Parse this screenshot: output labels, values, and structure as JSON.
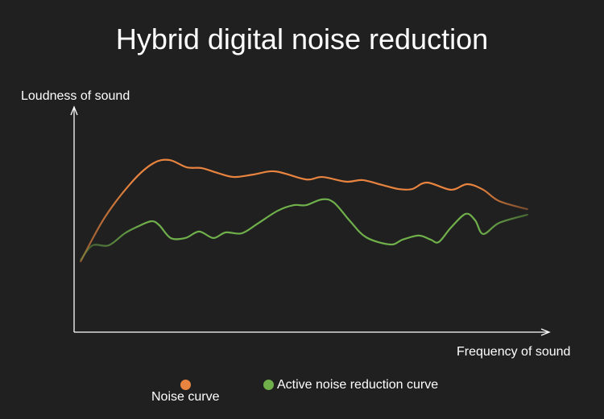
{
  "chart_data": {
    "type": "line",
    "title": "Hybrid digital noise reduction",
    "xlabel": "Frequency of sound",
    "ylabel": "Loudness of sound",
    "xlim": [
      0,
      100
    ],
    "ylim": [
      0,
      100
    ],
    "grid": false,
    "legend_placement": "bottom",
    "series": [
      {
        "name": "Noise curve",
        "color": "#e8843f",
        "points": [
          [
            1.4,
            31.7
          ],
          [
            6.5,
            51.4
          ],
          [
            12.4,
            67.6
          ],
          [
            16.7,
            75.5
          ],
          [
            20.1,
            77.0
          ],
          [
            23.8,
            73.7
          ],
          [
            26.9,
            73.4
          ],
          [
            30.3,
            71.2
          ],
          [
            33.7,
            69.4
          ],
          [
            37.9,
            70.5
          ],
          [
            42.5,
            71.9
          ],
          [
            49.0,
            68.3
          ],
          [
            52.4,
            69.4
          ],
          [
            57.5,
            67.3
          ],
          [
            60.9,
            68.0
          ],
          [
            65.1,
            65.8
          ],
          [
            68.5,
            64.0
          ],
          [
            71.4,
            64.0
          ],
          [
            74.5,
            66.9
          ],
          [
            79.6,
            63.7
          ],
          [
            83.0,
            66.2
          ],
          [
            86.4,
            63.7
          ],
          [
            89.8,
            58.6
          ],
          [
            95.7,
            55.0
          ]
        ]
      },
      {
        "name": "Active noise reduction curve",
        "color": "#6fb04a",
        "points": [
          [
            1.4,
            32.4
          ],
          [
            3.9,
            38.8
          ],
          [
            7.3,
            38.8
          ],
          [
            10.7,
            44.2
          ],
          [
            13.3,
            47.1
          ],
          [
            16.3,
            49.6
          ],
          [
            18.0,
            47.8
          ],
          [
            20.4,
            42.1
          ],
          [
            23.5,
            42.1
          ],
          [
            26.4,
            45.0
          ],
          [
            29.4,
            42.1
          ],
          [
            32.0,
            44.6
          ],
          [
            35.4,
            44.2
          ],
          [
            38.8,
            48.6
          ],
          [
            43.0,
            54.3
          ],
          [
            46.4,
            56.8
          ],
          [
            49.0,
            56.8
          ],
          [
            52.4,
            59.4
          ],
          [
            54.9,
            57.9
          ],
          [
            58.3,
            49.6
          ],
          [
            61.7,
            42.4
          ],
          [
            66.8,
            39.2
          ],
          [
            69.4,
            41.4
          ],
          [
            72.8,
            43.2
          ],
          [
            75.3,
            41.4
          ],
          [
            77.0,
            40.3
          ],
          [
            79.6,
            46.8
          ],
          [
            82.7,
            52.9
          ],
          [
            84.7,
            50.0
          ],
          [
            86.4,
            43.9
          ],
          [
            89.8,
            48.9
          ],
          [
            95.7,
            52.5
          ]
        ]
      }
    ]
  }
}
